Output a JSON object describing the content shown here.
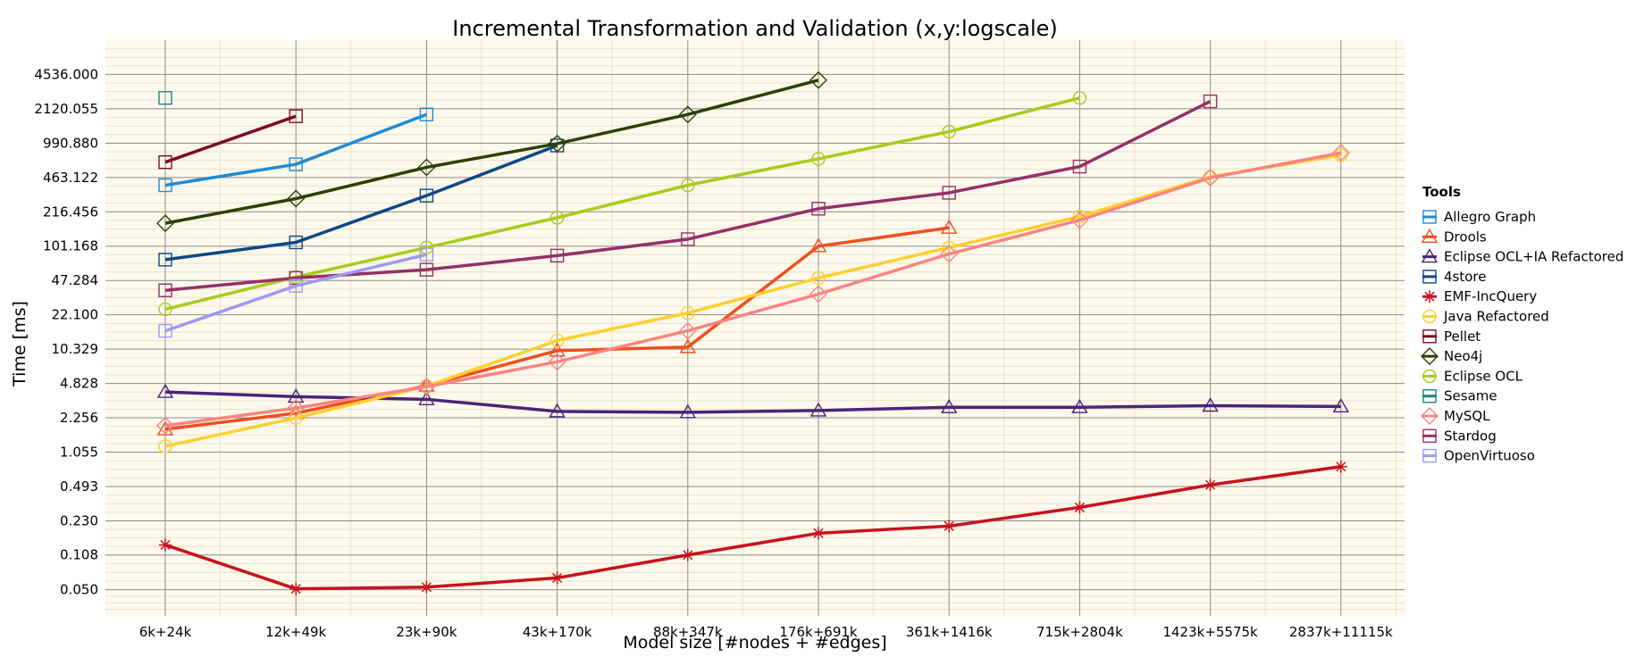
{
  "chart_data": {
    "type": "line",
    "title": "Incremental Transformation and Validation (x,y:logscale)",
    "xlabel": "Model size [#nodes + #edges]",
    "ylabel": "Time [ms]",
    "categories": [
      "6k+24k",
      "12k+49k",
      "23k+90k",
      "43k+170k",
      "88k+347k",
      "176k+691k",
      "361k+1416k",
      "715k+2804k",
      "1423k+5575k",
      "2837k+11115k"
    ],
    "y_scale": "log",
    "y_ticks": [
      0.05,
      0.108,
      0.23,
      0.493,
      1.055,
      2.256,
      4.828,
      10.329,
      22.1,
      47.284,
      101.168,
      216.456,
      463.122,
      990.88,
      2120.055,
      4536.0
    ],
    "y_tick_labels": [
      "0.050",
      "0.108",
      "0.230",
      "0.493",
      "1.055",
      "2.256",
      "4.828",
      "10.329",
      "22.100",
      "47.284",
      "101.168",
      "216.456",
      "463.122",
      "990.880",
      "2120.055",
      "4536.000"
    ],
    "ylim": [
      0.028,
      9700
    ],
    "grid": true,
    "legend": {
      "title": "Tools",
      "position": "right"
    },
    "series": [
      {
        "name": "Allegro Graph",
        "color": "#1f8bd4",
        "marker": "square",
        "values": [
          390,
          620,
          1870,
          null,
          null,
          null,
          null,
          null,
          null,
          null
        ]
      },
      {
        "name": "Drools",
        "color": "#f04e1e",
        "marker": "triangle",
        "values": [
          1.75,
          2.5,
          4.6,
          10.0,
          10.8,
          101,
          152,
          null,
          null,
          null
        ]
      },
      {
        "name": "Eclipse OCL+IA Refactored",
        "color": "#4b2478",
        "marker": "triangle",
        "values": [
          4.0,
          3.6,
          3.4,
          2.6,
          2.55,
          2.65,
          2.85,
          2.85,
          2.95,
          2.9
        ]
      },
      {
        "name": "4store",
        "color": "#0b4886",
        "marker": "square",
        "values": [
          75,
          110,
          310,
          940,
          null,
          null,
          null,
          null,
          null,
          null
        ]
      },
      {
        "name": "EMF-IncQuery",
        "color": "#c8121e",
        "marker": "asterisk",
        "values": [
          0.135,
          0.051,
          0.053,
          0.065,
          0.108,
          0.175,
          0.205,
          0.31,
          0.51,
          0.765
        ]
      },
      {
        "name": "Java Refactored",
        "color": "#ffd02e",
        "marker": "circle",
        "values": [
          1.2,
          2.25,
          4.55,
          12.5,
          23,
          50,
          98,
          195,
          470,
          760
        ]
      },
      {
        "name": "Pellet",
        "color": "#7c0e23",
        "marker": "square",
        "values": [
          650,
          1800,
          null,
          null,
          null,
          null,
          null,
          null,
          null,
          null
        ]
      },
      {
        "name": "Neo4j",
        "color": "#2c4106",
        "marker": "diamond",
        "values": [
          168,
          290,
          580,
          980,
          1870,
          4000,
          null,
          null,
          null,
          null
        ]
      },
      {
        "name": "Eclipse OCL",
        "color": "#a8cc1c",
        "marker": "circle",
        "values": [
          25,
          51,
          98,
          190,
          390,
          700,
          1280,
          2700,
          null,
          null
        ]
      },
      {
        "name": "Sesame",
        "color": "#20828e",
        "marker": "square",
        "values": [
          2700,
          null,
          null,
          null,
          null,
          null,
          null,
          null,
          null,
          null
        ]
      },
      {
        "name": "MySQL",
        "color": "#fb8581",
        "marker": "diamond",
        "values": [
          1.9,
          2.8,
          4.5,
          7.8,
          15.5,
          35,
          85,
          180,
          460,
          800
        ]
      },
      {
        "name": "Stardog",
        "color": "#953067",
        "marker": "square",
        "values": [
          38,
          50,
          60,
          82,
          118,
          232,
          330,
          590,
          2500,
          null
        ]
      },
      {
        "name": "OpenVirtuoso",
        "color": "#9d99f3",
        "marker": "square",
        "values": [
          15.5,
          42,
          84,
          null,
          null,
          null,
          null,
          null,
          null,
          null
        ]
      }
    ]
  }
}
